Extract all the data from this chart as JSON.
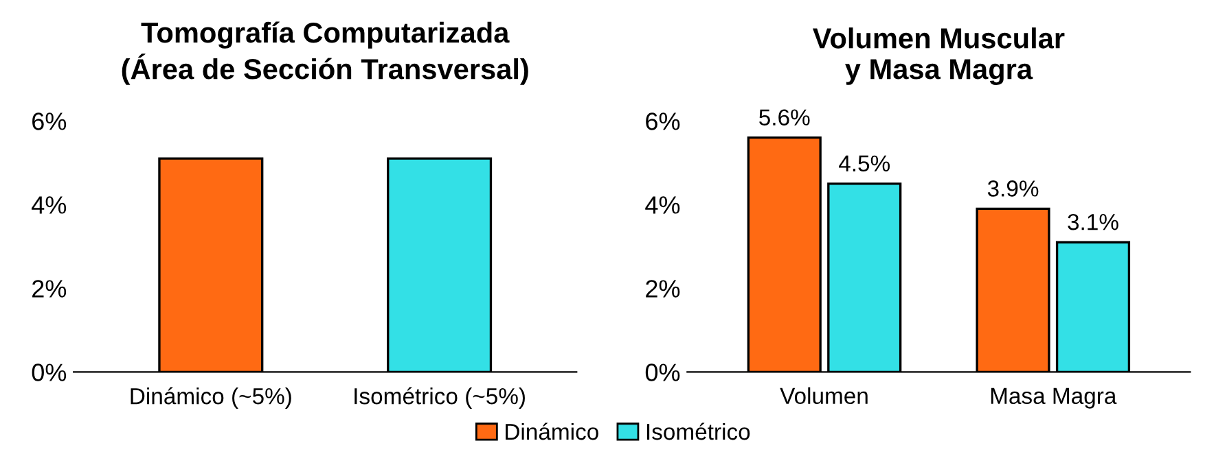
{
  "chart_data": [
    {
      "type": "bar",
      "title": "Tomografía Computarizada\n(Área de Sección Transversal)",
      "categories": [
        "Dinámico (~5%)",
        "Isométrico (~5%)"
      ],
      "values": [
        5.1,
        5.1
      ],
      "colors": [
        "#ff6a13",
        "#33e0e6"
      ],
      "ylim": [
        0,
        6
      ],
      "yticks": [
        {
          "value": 0,
          "label": "0%"
        },
        {
          "value": 2,
          "label": "2%"
        },
        {
          "value": 4,
          "label": "4%"
        },
        {
          "value": 6,
          "label": "6%"
        }
      ],
      "grid": false
    },
    {
      "type": "bar",
      "title": "Volumen Muscular\ny Masa Magra",
      "categories": [
        "Volumen",
        "Masa Magra"
      ],
      "series": [
        {
          "name": "Dinámico",
          "color": "#ff6a13",
          "values": [
            5.6,
            3.9
          ],
          "value_labels": [
            "5.6%",
            "3.9%"
          ]
        },
        {
          "name": "Isométrico",
          "color": "#33e0e6",
          "values": [
            4.5,
            3.1
          ],
          "value_labels": [
            "4.5%",
            "3.1%"
          ]
        }
      ],
      "ylim": [
        0,
        6
      ],
      "yticks": [
        {
          "value": 0,
          "label": "0%"
        },
        {
          "value": 2,
          "label": "2%"
        },
        {
          "value": 4,
          "label": "4%"
        },
        {
          "value": 6,
          "label": "6%"
        }
      ],
      "grid": false,
      "legend": "bottom"
    }
  ]
}
